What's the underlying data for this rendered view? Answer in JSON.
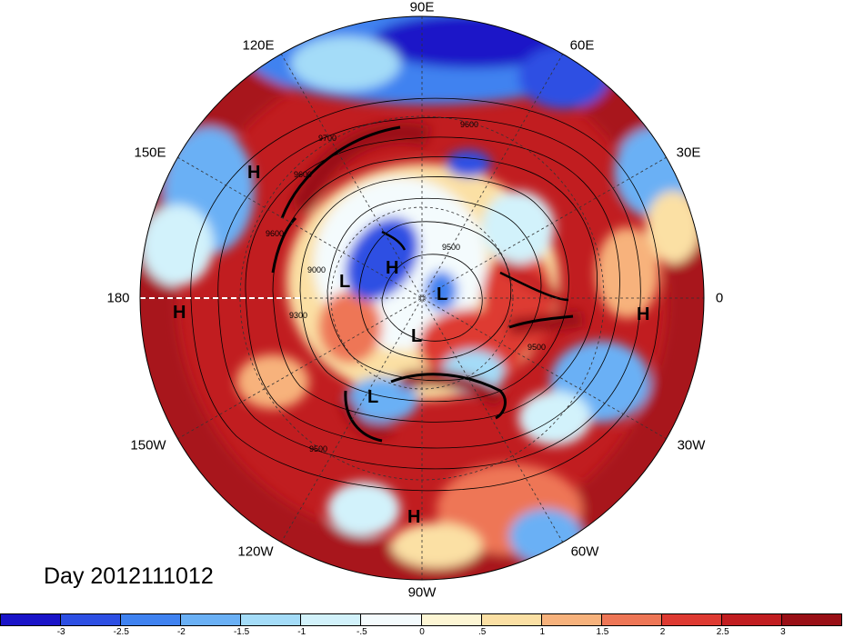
{
  "title": "Day 2012111012",
  "longitude_labels": {
    "n": "90E",
    "nne": "60E",
    "ene": "30E",
    "e": "0",
    "ese": "30W",
    "sse": "60W",
    "s": "90W",
    "ssw": "120W",
    "wsw": "150W",
    "w": "180",
    "wnw": "150E",
    "nnw": "120E"
  },
  "pressure_centers": [
    "H",
    "H",
    "H",
    "H",
    "H",
    "L",
    "L",
    "L",
    "L"
  ],
  "contour_labels": [
    "9600",
    "9500",
    "9000",
    "9700",
    "9300",
    "9600",
    "9500",
    "9600",
    "9500"
  ],
  "colorbar": {
    "ticks": [
      "-3",
      "-2.5",
      "-2",
      "-1.5",
      "-1",
      "-.5",
      "0",
      ".5",
      "1",
      "1.5",
      "2",
      "2.5",
      "3"
    ],
    "colors": [
      "#1a14c8",
      "#2d4fe3",
      "#3f82f0",
      "#6ab0f5",
      "#a4dcf8",
      "#d2f2fb",
      "#f4fbfd",
      "#fdf6d4",
      "#fbe0a4",
      "#f7b27c",
      "#ee7656",
      "#de3a32",
      "#c11d20",
      "#990f16"
    ]
  }
}
